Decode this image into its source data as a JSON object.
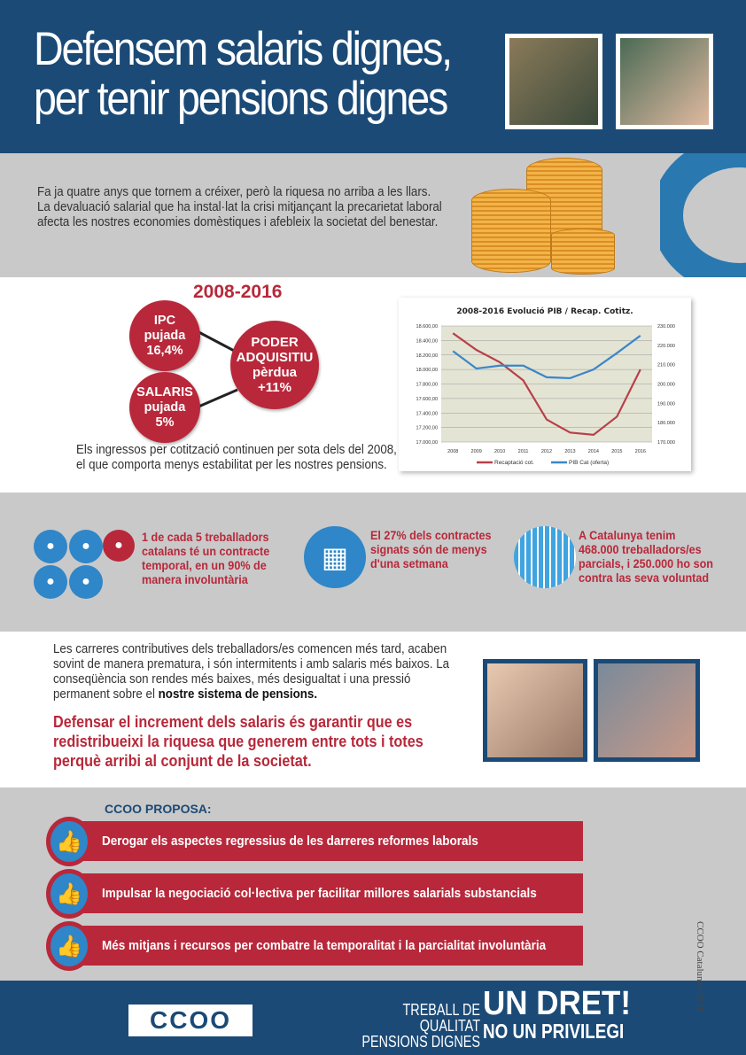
{
  "header": {
    "title_line1": "Defensem salaris dignes,",
    "title_line2": "per tenir pensions dignes"
  },
  "intro": "Fa ja quatre anys que tornem a créixer, però la riquesa no arriba a les llars. La devaluació salarial que ha instal·lat la crisi mitjançant la precarietat laboral afecta les nostres economies domèstiques i afebleix la societat del benestar.",
  "period": "2008-2016",
  "circles": {
    "ipc": [
      "IPC",
      "pujada",
      "16,4%"
    ],
    "salaris": [
      "SALARIS",
      "pujada",
      "5%"
    ],
    "poder": [
      "PODER",
      "ADQUISITIU",
      "pèrdua",
      "+11%"
    ]
  },
  "ingressos": "Els ingressos per cotització continuen per sota dels del 2008, el que comporta menys estabilitat per les nostres pensions.",
  "chart_data": {
    "type": "line",
    "title": "2008-2016 Evolució PIB / Recap. Cotitz.",
    "categories": [
      "2008",
      "2009",
      "2010",
      "2011",
      "2012",
      "2013",
      "2014",
      "2015",
      "2016"
    ],
    "y_left": {
      "ylim": [
        17000,
        18600
      ],
      "ticks": [
        "17.000,00",
        "17.200,00",
        "17.400,00",
        "17.600,00",
        "17.800,00",
        "18.000,00",
        "18.200,00",
        "18.400,00",
        "18.600,00"
      ]
    },
    "y_right": {
      "ylim": [
        170000,
        230000
      ],
      "ticks": [
        "170.000",
        "180.000",
        "190.000",
        "200.000",
        "210.000",
        "220.000",
        "230.000"
      ]
    },
    "grid": true,
    "legend": "bottom",
    "series": [
      {
        "name": "Recaptació cot.",
        "axis": "left",
        "color": "#b8404a",
        "values": [
          18500,
          18270,
          18100,
          17850,
          17310,
          17130,
          17100,
          17350,
          18000
        ]
      },
      {
        "name": "PIB Cat (oferta)",
        "axis": "right",
        "color": "#3a86c8",
        "values": [
          217000,
          208000,
          209500,
          209500,
          203500,
          203000,
          207500,
          216000,
          225000
        ]
      }
    ]
  },
  "stats": [
    "1 de cada 5 treballadors catalans té un contracte temporal, en un 90% de manera involuntària",
    "El 27% dels contractes signats són de menys d'una setmana",
    "A Catalunya tenim 468.000 treballadors/es parcials, i 250.000 ho son contra las seva voluntad"
  ],
  "carreres": "Les carreres contributives dels treballadors/es comencen més tard, acaben sovint de manera prematura, i són intermitents i amb salaris més baixos. La conseqüència son rendes més baixes, més desigualtat i una pressió permanent sobre el ",
  "carreres_bold": "nostre sistema de pensions.",
  "defensar": "Defensar el increment dels salaris és garantir que es redistribueixi la riquesa que generem entre tots i totes perquè arribi al conjunt de la societat.",
  "proposa": {
    "title": "CCOO PROPOSA:",
    "items": [
      "Derogar els aspectes regressius de les darreres reformes laborals",
      "Impulsar la negociació col·lectiva per facilitar millores salarials substancials",
      "Més mitjans i recursos per combatre la temporalitat i la parcialitat involuntària"
    ]
  },
  "footer": {
    "logo": "CCOO",
    "line1": "TREBALL DE QUALITAT",
    "line2": "PENSIONS DIGNES",
    "slogan1": "UN DRET!",
    "slogan2": "NO UN PRIVILEGI"
  },
  "copyright": "CCOO Catalunya 2018",
  "colors": {
    "blue": "#1b4a76",
    "red": "#b8283a",
    "gray": "#c9c9c9",
    "light_blue": "#2f86c8"
  }
}
